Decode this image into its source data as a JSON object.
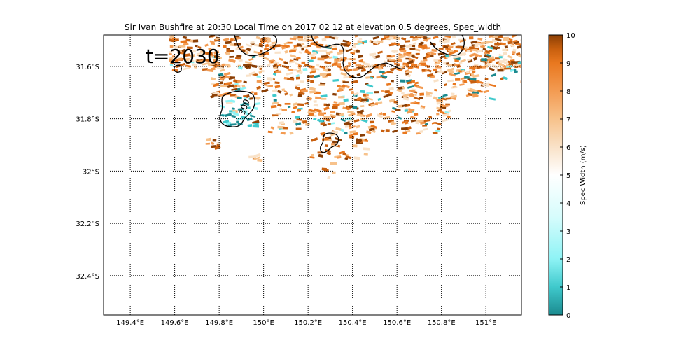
{
  "chart_data": {
    "type": "heatmap",
    "title": "Sir Ivan Bushfire at 20:30 Local Time on 2017 02 12 at elevation 0.5 degrees, Spec_width",
    "annotation": "t=2030",
    "xlim": [
      149.28,
      151.16
    ],
    "ylim": [
      -32.55,
      -31.48
    ],
    "x_ticks": [
      149.4,
      149.6,
      149.8,
      150.0,
      150.2,
      150.4,
      150.6,
      150.8,
      151.0
    ],
    "x_tick_labels": [
      "149.4°E",
      "149.6°E",
      "149.8°E",
      "150°E",
      "150.2°E",
      "150.4°E",
      "150.6°E",
      "150.8°E",
      "151°E"
    ],
    "y_ticks": [
      -31.6,
      -31.8,
      -32.0,
      -32.2,
      -32.4
    ],
    "y_tick_labels": [
      "31.6°S",
      "31.8°S",
      "32°S",
      "32.2°S",
      "32.4°S"
    ],
    "grid": true,
    "contour_labels": [
      "300"
    ],
    "colorbar": {
      "label": "Spec Width (m/s)",
      "min": 0,
      "max": 10,
      "tick_labels": [
        "0",
        "1",
        "2",
        "3",
        "4",
        "5",
        "6",
        "7",
        "8",
        "9",
        "10"
      ],
      "colors": [
        "#1b8a8f",
        "#3fc9cc",
        "#8ef3f5",
        "#d6fcfc",
        "#ffffff",
        "#f9e2c8",
        "#f7c28b",
        "#f39b52",
        "#e9781f",
        "#c85f0e",
        "#8b3f05"
      ]
    }
  }
}
